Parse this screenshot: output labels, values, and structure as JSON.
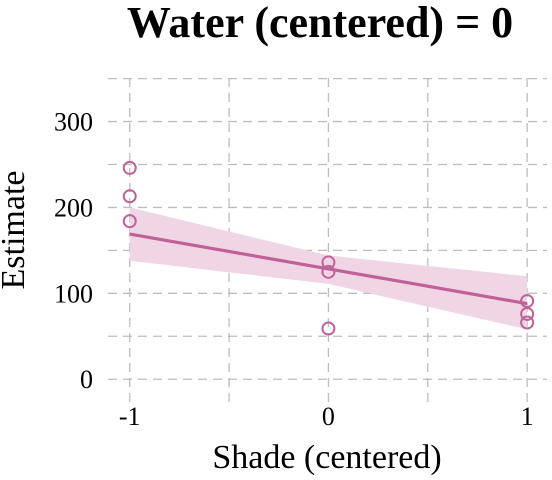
{
  "chart_data": {
    "type": "scatter",
    "title": "Water (centered) = 0",
    "xlabel": "Shade (centered)",
    "ylabel": "Estimate",
    "xlim": [
      -1.2,
      1.1
    ],
    "ylim": [
      -30,
      360
    ],
    "x_ticks": [
      -1,
      0,
      1
    ],
    "x_tick_labels": [
      "-1",
      "0",
      "1"
    ],
    "y_ticks": [
      0,
      100,
      200,
      300
    ],
    "y_tick_labels": [
      "0",
      "100",
      "200",
      "300"
    ],
    "x_minor_grid": [
      -0.5,
      0.5
    ],
    "y_minor_grid": [
      50,
      150,
      250,
      350
    ],
    "grid": true,
    "legend": "none",
    "colors": {
      "accent": "#c0619a",
      "band": "#f0d6e5",
      "grid": "#bdbdbd"
    },
    "points": [
      {
        "x": -1,
        "y": 246
      },
      {
        "x": -1,
        "y": 213
      },
      {
        "x": -1,
        "y": 184
      },
      {
        "x": 0,
        "y": 136
      },
      {
        "x": 0,
        "y": 125
      },
      {
        "x": 0,
        "y": 59
      },
      {
        "x": 1,
        "y": 91
      },
      {
        "x": 1,
        "y": 76
      },
      {
        "x": 1,
        "y": 66
      }
    ],
    "fit_line": {
      "x": [
        -1,
        1
      ],
      "y": [
        169,
        88
      ]
    },
    "interval_band": {
      "x": [
        -1,
        0,
        1
      ],
      "lower": [
        138,
        111,
        58
      ],
      "upper": [
        200,
        144,
        120
      ]
    }
  }
}
